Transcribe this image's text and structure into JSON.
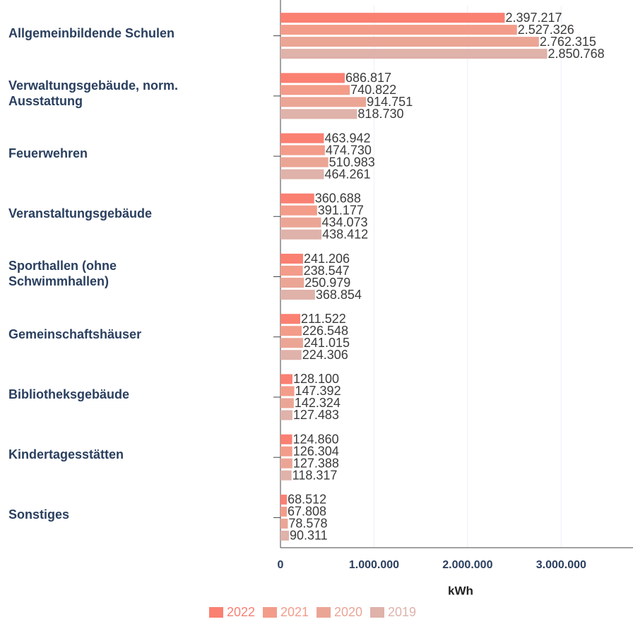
{
  "chart_data": {
    "type": "bar",
    "orientation": "horizontal",
    "categories": [
      "Allgemeinbildende Schulen",
      "Verwaltungsgebäude, norm. Ausstattung",
      "Feuerwehren",
      "Veranstaltungsgebäude",
      "Sporthallen (ohne Schwimmhallen)",
      "Gemeinschaftshäuser",
      "Bibliotheksgebäude",
      "Kindertagesstätten",
      "Sonstiges"
    ],
    "series": [
      {
        "name": "2022",
        "color": "#fa8072",
        "values": [
          2397217,
          686817,
          463942,
          360688,
          241206,
          211522,
          128100,
          124860,
          68512
        ],
        "value_labels": [
          "2.397.217",
          "686.817",
          "463.942",
          "360.688",
          "241.206",
          "211.522",
          "128.100",
          "124.860",
          "68.512"
        ]
      },
      {
        "name": "2021",
        "color": "#f39c8a",
        "values": [
          2527326,
          740822,
          474730,
          391177,
          238547,
          226548,
          147392,
          126304,
          67808
        ],
        "value_labels": [
          "2.527.326",
          "740.822",
          "474.730",
          "391.177",
          "238.547",
          "226.548",
          "147.392",
          "126.304",
          "67.808"
        ]
      },
      {
        "name": "2020",
        "color": "#eba595",
        "values": [
          2762315,
          914751,
          510983,
          434073,
          250979,
          241015,
          142324,
          127388,
          78578
        ],
        "value_labels": [
          "2.762.315",
          "914.751",
          "510.983",
          "434.073",
          "250.979",
          "241.015",
          "142.324",
          "127.388",
          "78.578"
        ]
      },
      {
        "name": "2019",
        "color": "#dfb2aa",
        "values": [
          2850768,
          818730,
          464261,
          438412,
          368854,
          224306,
          127483,
          118317,
          90311
        ],
        "value_labels": [
          "2.850.768",
          "818.730",
          "464.261",
          "438.412",
          "368.854",
          "224.306",
          "127.483",
          "118.317",
          "90.311"
        ]
      }
    ],
    "xlabel": "kWh",
    "xlim": [
      0,
      3730000
    ],
    "xticks": [
      0,
      {
        "value": 1000000,
        "label": "1.000.000"
      },
      {
        "value": 2000000,
        "label": "2.000.000"
      },
      {
        "value": 3000000,
        "label": "3.000.000"
      }
    ],
    "grid": true
  }
}
